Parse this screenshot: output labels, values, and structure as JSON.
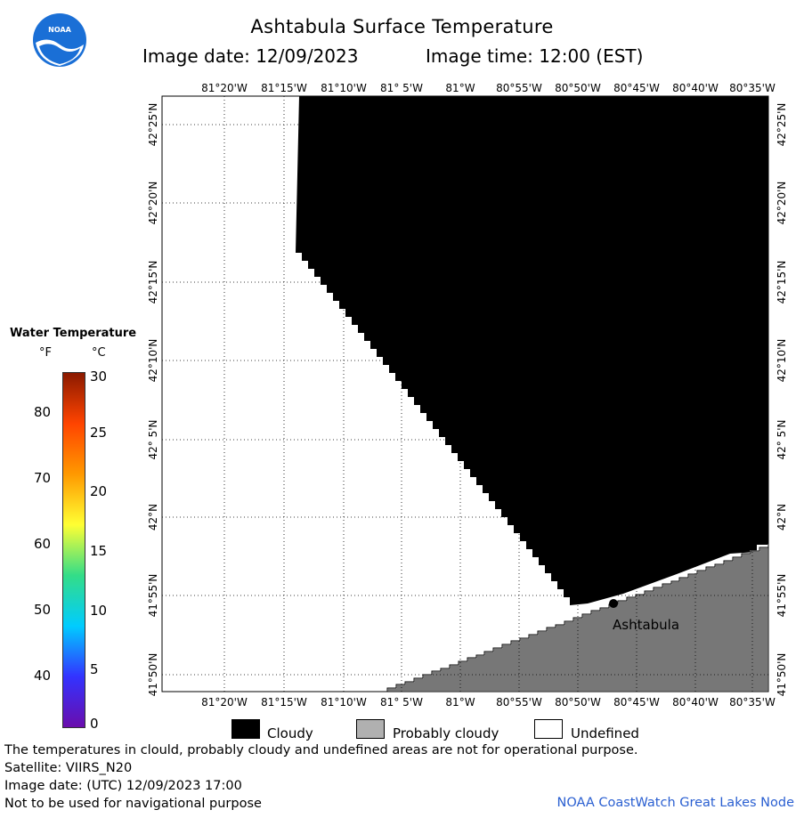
{
  "header": {
    "title": "Ashtabula Surface Temperature",
    "image_date_label": "Image date: 12/09/2023",
    "image_time_label": "Image time: 12:00 (EST)",
    "logo_text": "NOAA"
  },
  "map": {
    "lon_labels": [
      "81°20'W",
      "81°15'W",
      "81°10'W",
      "81° 5'W",
      "81°W",
      "80°55'W",
      "80°50'W",
      "80°45'W",
      "80°40'W",
      "80°35'W"
    ],
    "lat_labels": [
      "42°25'N",
      "42°20'N",
      "42°15'N",
      "42°10'N",
      "42° 5'N",
      "42°N",
      "41°55'N",
      "41°50'N"
    ],
    "city_label": "Ashtabula",
    "colors": {
      "cloud": "#000000",
      "land": "#777777",
      "undefined": "#ffffff",
      "grid": "#000000"
    }
  },
  "legend": {
    "title": "Water Temperature",
    "unit_f": "°F",
    "unit_c": "°C",
    "f_ticks": [
      "80",
      "70",
      "60",
      "50",
      "40"
    ],
    "c_ticks": [
      "30",
      "25",
      "20",
      "15",
      "10",
      "5",
      "0"
    ],
    "gradient_colors": [
      "#6a0dad",
      "#3333ff",
      "#00ccff",
      "#33dd88",
      "#ffff33",
      "#ff9900",
      "#ff4400",
      "#8b1a00"
    ]
  },
  "key": {
    "cloudy": "Cloudy",
    "probably_cloudy": "Probably cloudy",
    "undefined": "Undefined",
    "colors": {
      "cloudy": "#000000",
      "probably_cloudy": "#b0b0b0",
      "undefined": "#ffffff"
    }
  },
  "footer": {
    "note": "The temperatures in clould, probably cloudy and undefined areas are not for operational purpose.",
    "satellite": "Satellite: VIIRS_N20",
    "utc_date": "Image date: (UTC) 12/09/2023  17:00",
    "navigation": "Not to be used for navigational purpose",
    "credit": "NOAA CoastWatch Great Lakes Node"
  }
}
